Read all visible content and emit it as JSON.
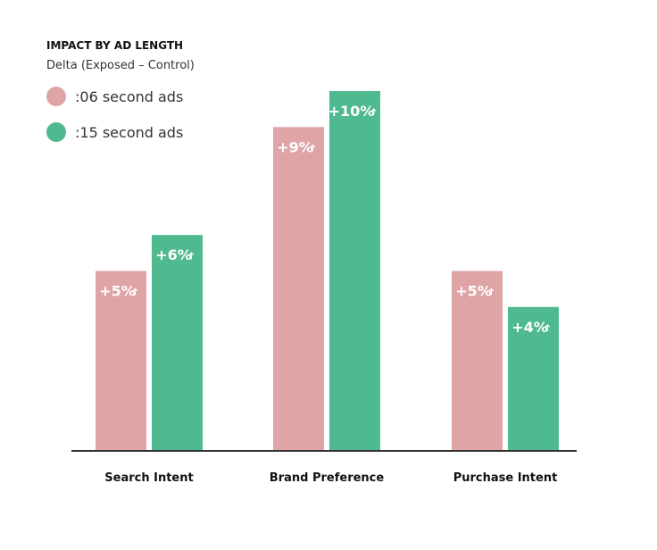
{
  "chart_data": {
    "type": "bar",
    "title": "IMPACT BY AD LENGTH",
    "subtitle": "Delta (Exposed – Control)",
    "categories": [
      "Search Intent",
      "Brand Preference",
      "Purchase Intent"
    ],
    "series": [
      {
        "name": ":06 second ads",
        "color": "#dea4a6",
        "values": [
          5,
          9,
          5
        ],
        "labels": [
          "+5%",
          "+9%",
          "+5%"
        ]
      },
      {
        "name": ":15 second ads",
        "color": "#4fb98f",
        "values": [
          6,
          10,
          4
        ],
        "labels": [
          "+6%",
          "+10%",
          "+4%"
        ]
      }
    ],
    "value_suffix_icon": "up-arrow-icon",
    "ylim": [
      0,
      10
    ],
    "grid": false,
    "legend_position": "top-left",
    "axis_color": "#333333"
  }
}
